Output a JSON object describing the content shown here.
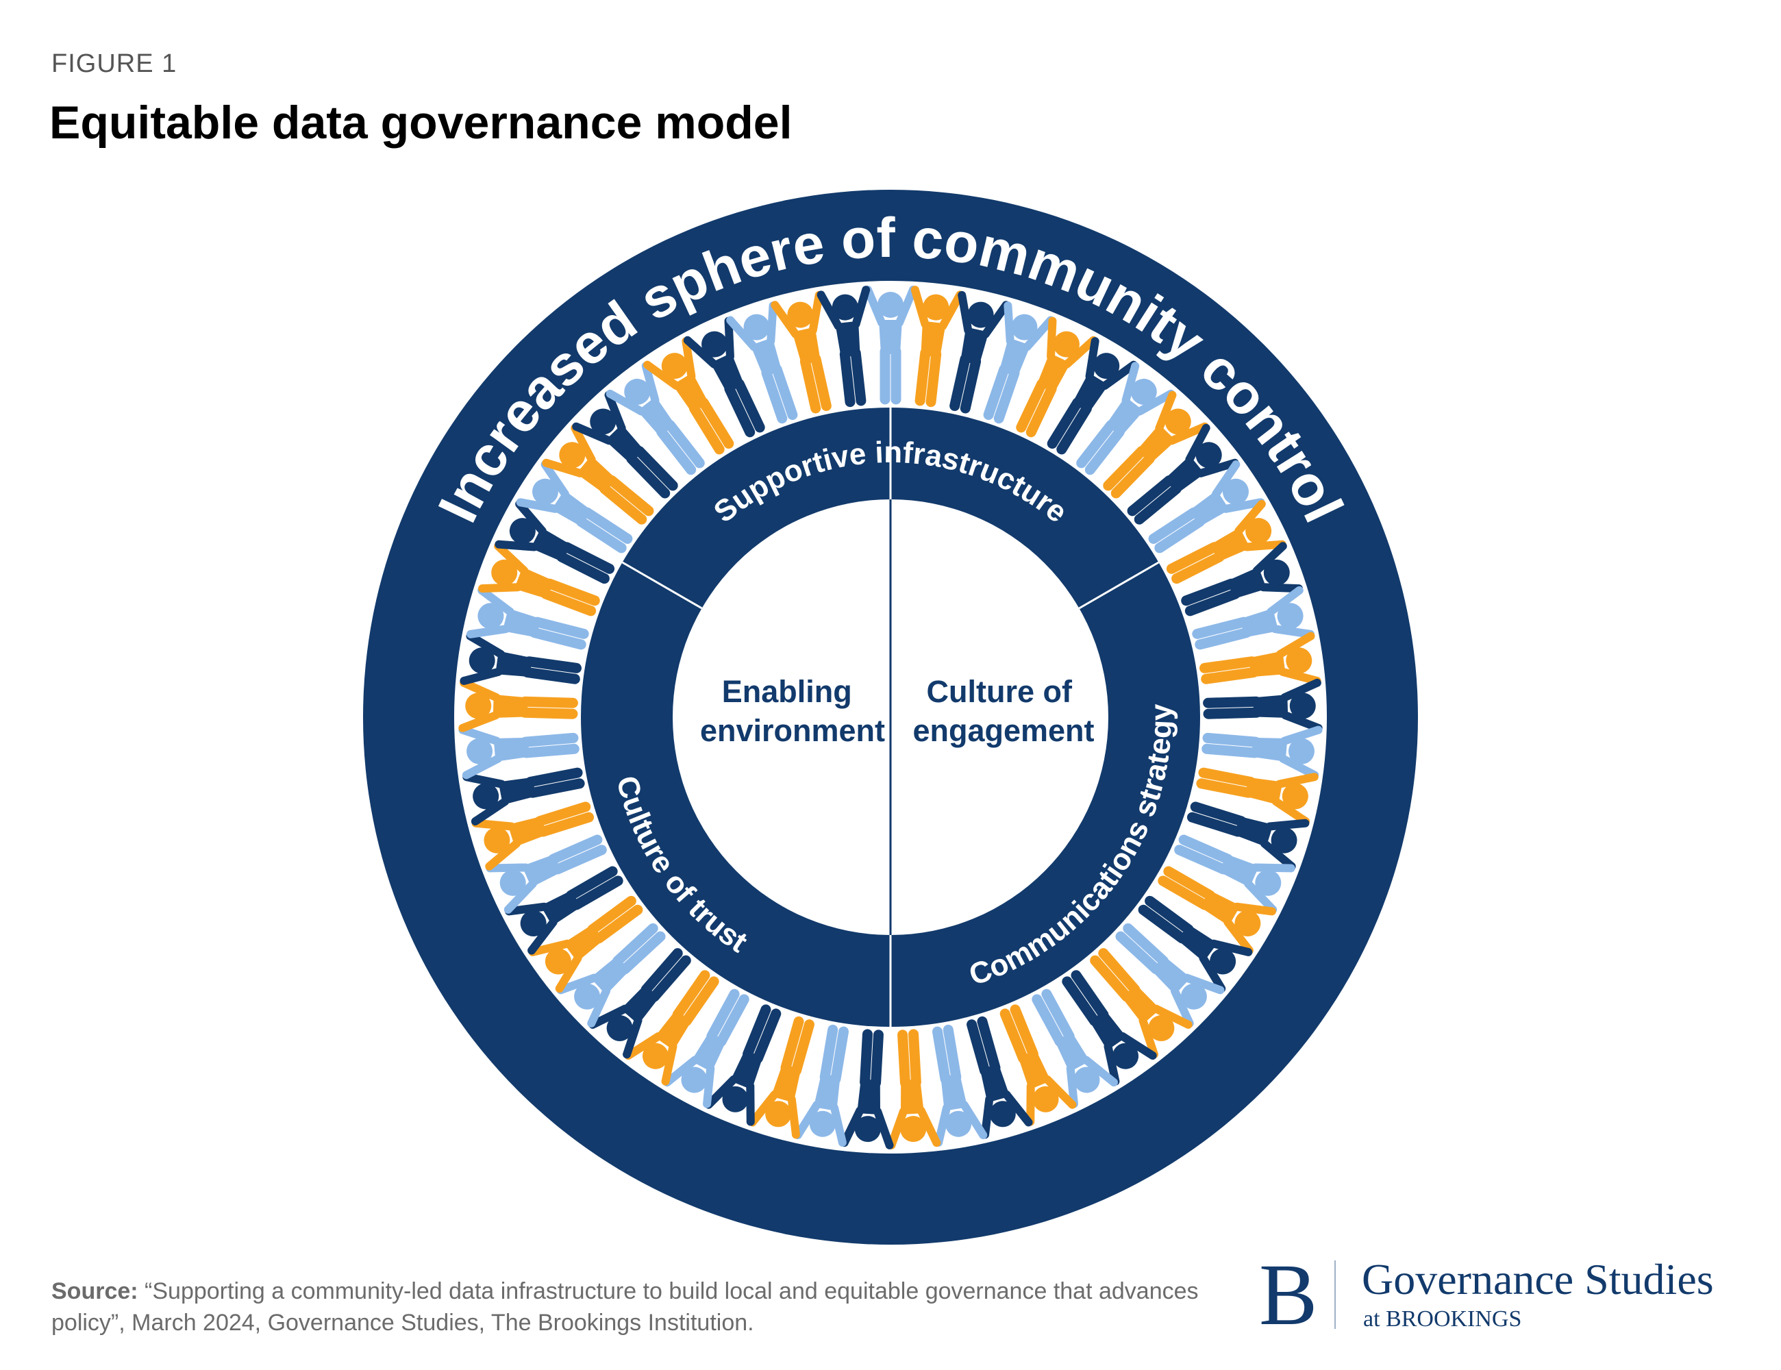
{
  "header": {
    "figure_label": "FIGURE 1",
    "title": "Equitable data governance model"
  },
  "diagram": {
    "outer_ring_label": "Increased sphere of community control",
    "inner_ring_segments": [
      {
        "label": "Supportive infrastructure"
      },
      {
        "label": "Communications strategy"
      },
      {
        "label": "Culture of trust"
      }
    ],
    "center_left": {
      "line1": "Enabling",
      "line2": "environment"
    },
    "center_right": {
      "line1": "Culture of",
      "line2": "engagement"
    },
    "people_icon": "person-arms-raised-icon",
    "people_color_cycle": [
      "#8cb8e8",
      "#f7a01f",
      "#123a6c"
    ]
  },
  "colors": {
    "navy": "#123a6c",
    "light_blue": "#8cb8e8",
    "orange": "#f7a01f"
  },
  "source": {
    "label": "Source:",
    "text": " “Supporting a community-led data infrastructure to build local and equitable governance that advances policy”, March 2024, Governance Studies, The Brookings Institution."
  },
  "logo": {
    "letter": "B",
    "name": "Governance Studies",
    "sub": "at BROOKINGS"
  }
}
